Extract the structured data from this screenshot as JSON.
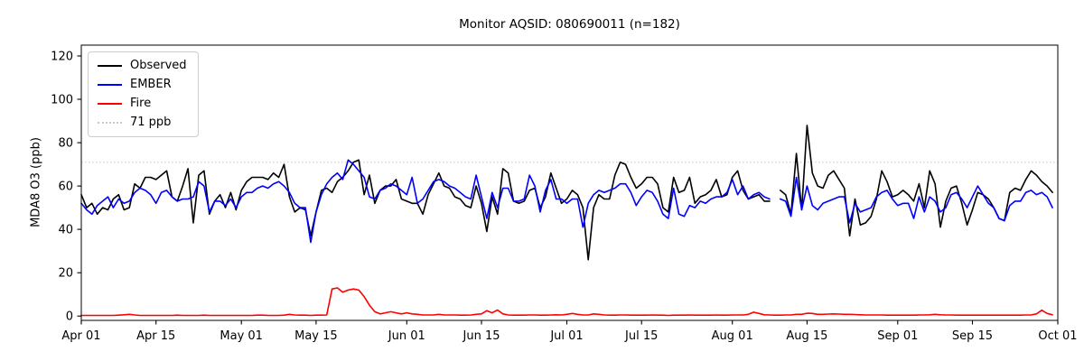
{
  "chart_data": {
    "type": "line",
    "title": "Monitor AQSID: 080690011 (n=182)",
    "xlabel": "",
    "ylabel": "MDA8 O3 (ppb)",
    "ylim": [
      -2,
      125
    ],
    "xlim": [
      0,
      183
    ],
    "yticks": [
      0,
      20,
      40,
      60,
      80,
      100,
      120
    ],
    "xticks": [
      {
        "label": "Apr 01",
        "day": 0
      },
      {
        "label": "Apr 15",
        "day": 14
      },
      {
        "label": "May 01",
        "day": 30
      },
      {
        "label": "May 15",
        "day": 44
      },
      {
        "label": "Jun 01",
        "day": 61
      },
      {
        "label": "Jun 15",
        "day": 75
      },
      {
        "label": "Jul 01",
        "day": 91
      },
      {
        "label": "Jul 15",
        "day": 105
      },
      {
        "label": "Aug 01",
        "day": 122
      },
      {
        "label": "Aug 15",
        "day": 136
      },
      {
        "label": "Sep 01",
        "day": 153
      },
      {
        "label": "Sep 15",
        "day": 167
      },
      {
        "label": "Oct 01",
        "day": 183
      }
    ],
    "threshold": {
      "value": 71,
      "label": "71 ppb",
      "color": "#cccccc",
      "style": "dotted"
    },
    "legend": {
      "position": "upper left",
      "entries": [
        {
          "label": "Observed",
          "color": "#000000",
          "style": "solid"
        },
        {
          "label": "EMBER",
          "color": "#0000ff",
          "style": "solid"
        },
        {
          "label": "Fire",
          "color": "#ff0000",
          "style": "solid"
        },
        {
          "label": "71 ppb",
          "color": "#c8c8c8",
          "style": "dotted"
        }
      ]
    },
    "grid": false,
    "x_start_label": "Apr 01",
    "x_unit": "day",
    "series": [
      {
        "name": "Observed",
        "color": "#000000",
        "values": [
          56,
          50,
          52,
          47,
          50,
          49,
          54,
          56,
          49,
          50,
          61,
          59,
          64,
          64,
          63,
          65,
          67,
          55,
          53,
          60,
          68,
          43,
          65,
          67,
          47,
          53,
          56,
          50,
          57,
          49,
          58,
          62,
          64,
          64,
          64,
          63,
          66,
          64,
          70,
          55,
          48,
          50,
          49,
          37,
          48,
          58,
          59,
          57,
          62,
          64,
          67,
          71,
          72,
          56,
          65,
          52,
          58,
          60,
          60,
          63,
          54,
          53,
          52,
          52,
          47,
          56,
          61,
          66,
          60,
          59,
          55,
          54,
          51,
          50,
          60,
          52,
          39,
          55,
          47,
          68,
          66,
          53,
          52,
          53,
          58,
          59,
          50,
          55,
          66,
          59,
          52,
          54,
          58,
          56,
          50,
          26,
          50,
          56,
          54,
          54,
          65,
          71,
          70,
          64,
          59,
          61,
          64,
          64,
          61,
          50,
          48,
          64,
          57,
          58,
          64,
          52,
          55,
          56,
          58,
          63,
          55,
          56,
          64,
          67,
          58,
          54,
          55,
          56,
          53,
          53,
          null,
          58,
          56,
          47,
          75,
          49,
          88,
          66,
          60,
          59,
          65,
          67,
          63,
          59,
          37,
          54,
          42,
          43,
          46,
          54,
          67,
          62,
          55,
          56,
          58,
          56,
          53,
          61,
          50,
          67,
          61,
          41,
          53,
          59,
          60,
          52,
          42,
          49,
          57,
          56,
          54,
          50,
          45,
          44,
          57,
          59,
          58,
          63,
          67,
          65,
          62,
          60,
          57
        ]
      },
      {
        "name": "EMBER",
        "color": "#0000ff",
        "values": [
          52,
          49,
          47,
          51,
          53,
          55,
          50,
          54,
          52,
          53,
          57,
          59,
          58,
          56,
          52,
          57,
          58,
          55,
          53,
          54,
          54,
          55,
          62,
          60,
          48,
          53,
          53,
          51,
          54,
          50,
          55,
          57,
          57,
          59,
          60,
          59,
          61,
          62,
          60,
          57,
          52,
          50,
          50,
          34,
          48,
          56,
          61,
          64,
          66,
          63,
          72,
          70,
          67,
          64,
          55,
          54,
          58,
          59,
          61,
          60,
          58,
          56,
          64,
          52,
          54,
          58,
          62,
          63,
          62,
          60,
          59,
          57,
          55,
          54,
          65,
          55,
          45,
          57,
          50,
          59,
          59,
          53,
          53,
          54,
          65,
          60,
          48,
          58,
          63,
          54,
          54,
          52,
          54,
          54,
          41,
          52,
          56,
          58,
          57,
          58,
          59,
          61,
          61,
          57,
          51,
          55,
          58,
          57,
          53,
          47,
          45,
          59,
          47,
          46,
          51,
          50,
          53,
          52,
          54,
          55,
          55,
          57,
          63,
          56,
          60,
          54,
          56,
          57,
          55,
          54,
          null,
          54,
          53,
          46,
          64,
          49,
          60,
          51,
          49,
          52,
          53,
          54,
          55,
          55,
          43,
          52,
          48,
          49,
          50,
          55,
          57,
          58,
          54,
          51,
          52,
          52,
          45,
          55,
          48,
          55,
          53,
          48,
          50,
          56,
          57,
          54,
          50,
          55,
          60,
          56,
          52,
          50,
          45,
          44,
          51,
          53,
          53,
          57,
          58,
          56,
          57,
          55,
          50
        ]
      },
      {
        "name": "Fire",
        "color": "#ff0000",
        "values": [
          0.3,
          0.3,
          0.3,
          0.3,
          0.3,
          0.3,
          0.3,
          0.4,
          0.6,
          0.8,
          0.5,
          0.3,
          0.3,
          0.3,
          0.3,
          0.3,
          0.3,
          0.3,
          0.4,
          0.3,
          0.3,
          0.3,
          0.3,
          0.4,
          0.3,
          0.3,
          0.3,
          0.3,
          0.3,
          0.3,
          0.3,
          0.3,
          0.3,
          0.4,
          0.4,
          0.3,
          0.3,
          0.3,
          0.4,
          0.8,
          0.5,
          0.4,
          0.4,
          0.3,
          0.4,
          0.4,
          0.5,
          12.5,
          13,
          11,
          12,
          12.5,
          12,
          9,
          5,
          2,
          1,
          1.5,
          2,
          1.5,
          1,
          1.5,
          1,
          0.8,
          0.5,
          0.5,
          0.5,
          0.8,
          0.5,
          0.5,
          0.5,
          0.4,
          0.4,
          0.5,
          0.8,
          1,
          2.5,
          1.5,
          2.8,
          1,
          0.5,
          0.4,
          0.4,
          0.4,
          0.5,
          0.5,
          0.4,
          0.4,
          0.5,
          0.6,
          0.5,
          0.8,
          1.2,
          0.8,
          0.5,
          0.5,
          1,
          0.8,
          0.5,
          0.4,
          0.4,
          0.5,
          0.5,
          0.4,
          0.4,
          0.4,
          0.4,
          0.5,
          0.4,
          0.4,
          0.3,
          0.4,
          0.4,
          0.4,
          0.5,
          0.4,
          0.4,
          0.4,
          0.4,
          0.5,
          0.4,
          0.4,
          0.5,
          0.5,
          0.5,
          0.8,
          1.8,
          1.2,
          0.6,
          0.5,
          0.4,
          0.4,
          0.5,
          0.5,
          0.8,
          0.8,
          1.3,
          1.2,
          0.8,
          0.8,
          0.9,
          1,
          0.9,
          0.8,
          0.8,
          0.7,
          0.6,
          0.5,
          0.5,
          0.5,
          0.5,
          0.4,
          0.4,
          0.4,
          0.4,
          0.4,
          0.4,
          0.5,
          0.5,
          0.6,
          0.8,
          0.6,
          0.5,
          0.5,
          0.4,
          0.4,
          0.4,
          0.4,
          0.4,
          0.4,
          0.4,
          0.4,
          0.4,
          0.4,
          0.4,
          0.4,
          0.4,
          0.5,
          0.5,
          1,
          2.7,
          1.2,
          0.6
        ]
      }
    ]
  }
}
